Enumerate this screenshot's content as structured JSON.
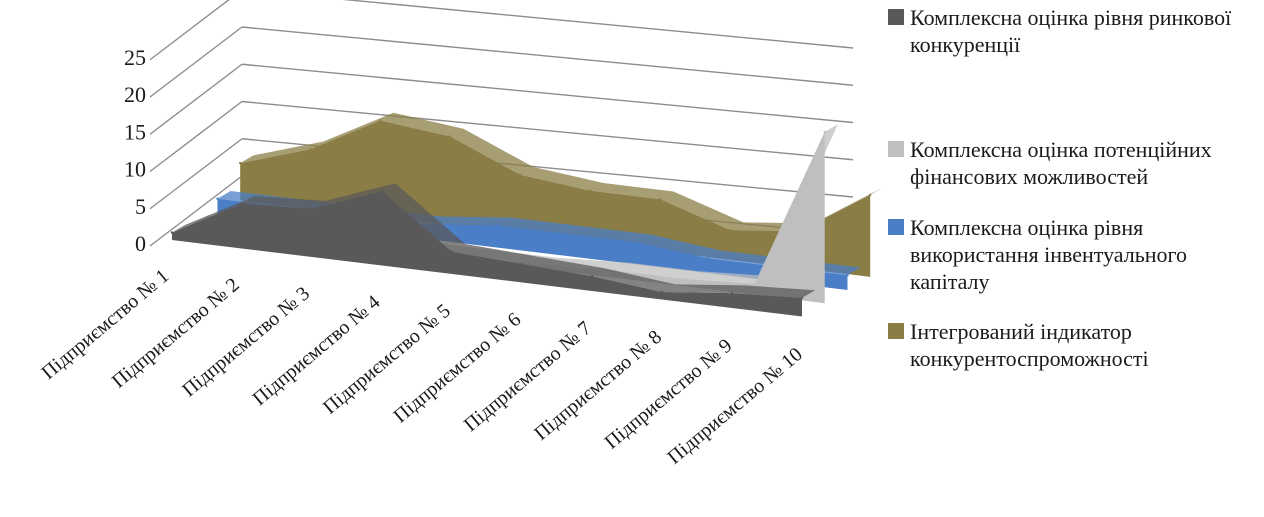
{
  "chart_data": {
    "type": "area",
    "categories": [
      "Підприємство № 1",
      "Підприємство № 2",
      "Підприємство № 3",
      "Підприємство № 4",
      "Підприємство № 5",
      "Підприємство № 6",
      "Підприємство № 7",
      "Підприємство № 8",
      "Підприємство № 9",
      "Підприємство № 10"
    ],
    "y_ticks": [
      "0",
      "5",
      "10",
      "15",
      "20",
      "25"
    ],
    "ylim": [
      0,
      25
    ],
    "grid": true,
    "legend_position": "right",
    "series": [
      {
        "name": "Комплексна оцінка рівня ринкової конкуренції",
        "color": "#595959",
        "values": [
          1,
          6,
          6.5,
          10,
          3,
          2.5,
          2,
          1,
          2,
          2.5
        ]
      },
      {
        "name": "Комплексна оцінка потенційних фінансових можливостей",
        "color": "#bfbfbf",
        "values": [
          0.5,
          0.5,
          0.5,
          0.5,
          0.5,
          0.5,
          1,
          1,
          1.5,
          23
        ]
      },
      {
        "name": "Комплексна оцінка рівня використання інвентуального капіталу",
        "color": "#4a7ec7",
        "values": [
          2,
          2,
          2,
          2,
          3,
          3,
          3,
          2,
          2,
          2
        ]
      },
      {
        "name": "Інтегрований індикатор конкурентоспроможності",
        "color": "#8a7d45",
        "values": [
          5,
          8,
          13,
          12,
          8,
          7,
          7,
          4,
          5,
          11
        ]
      }
    ]
  }
}
